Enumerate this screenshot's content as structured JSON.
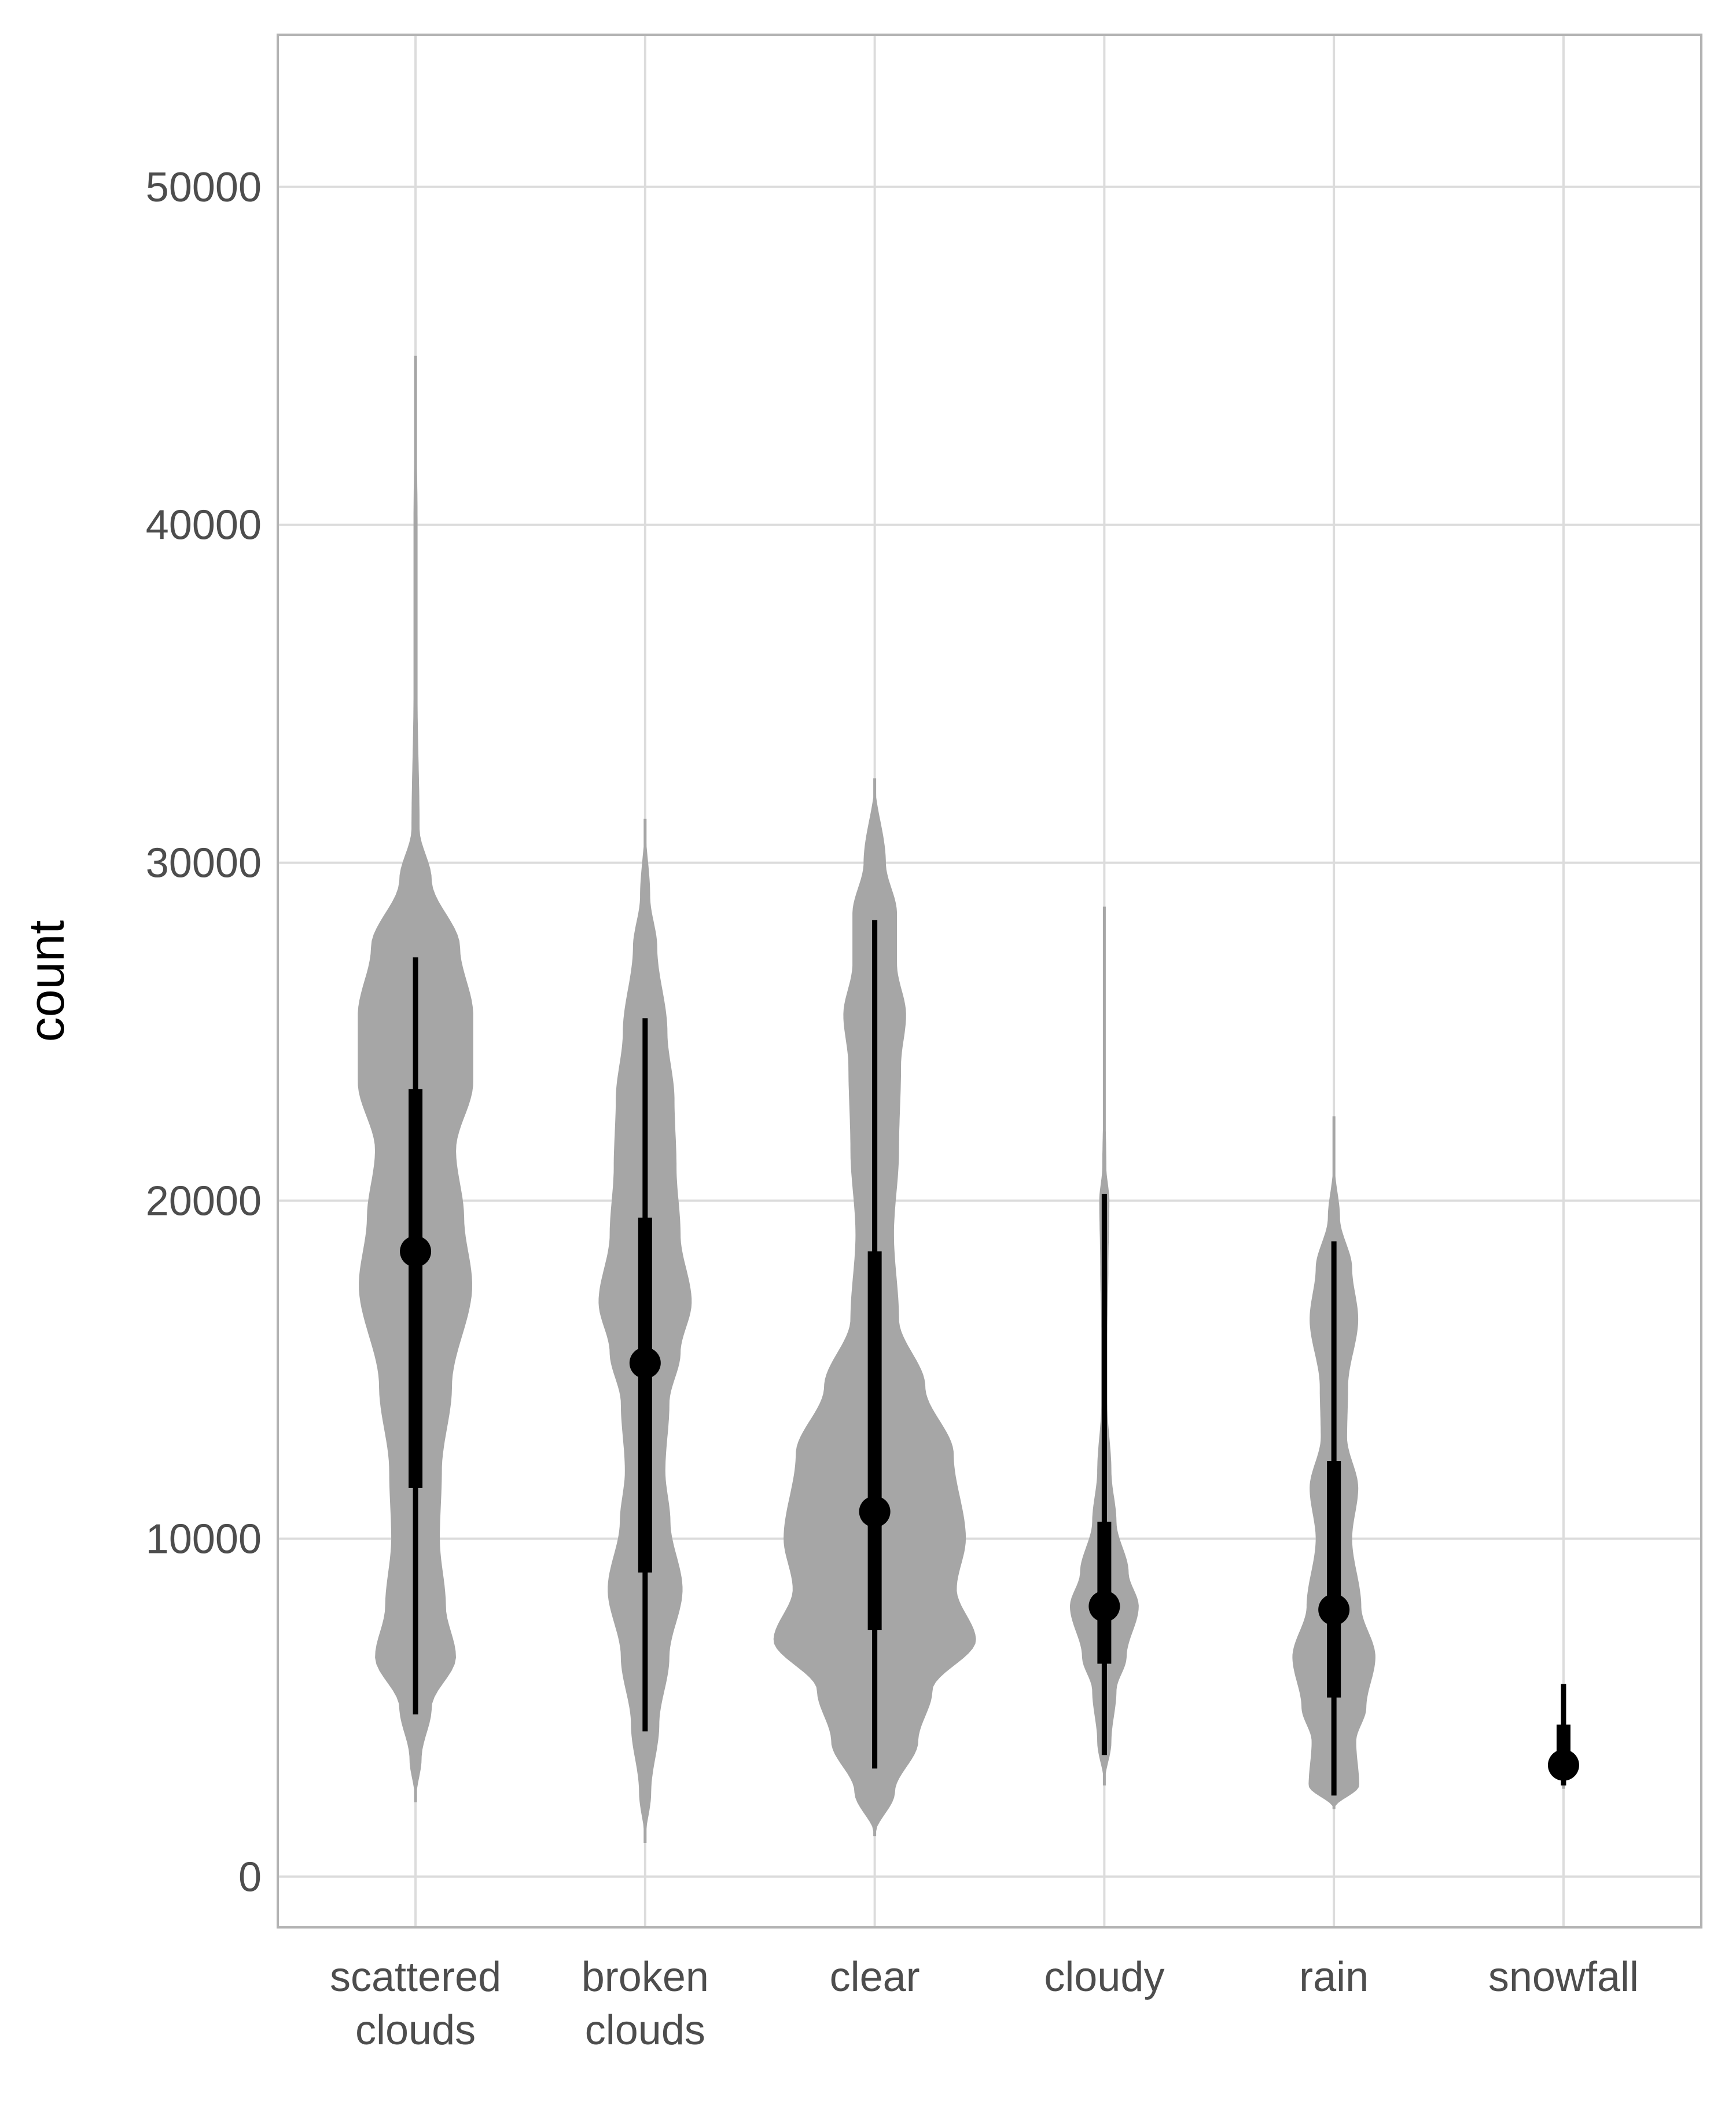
{
  "chart_data": {
    "type": "violin",
    "ylabel": "count",
    "xlabel": "",
    "ylim": [
      -1500,
      54500
    ],
    "yticks": [
      0,
      10000,
      20000,
      30000,
      40000,
      50000
    ],
    "grid": true,
    "colors": {
      "violin": "#a6a6a6",
      "summary": "#000000",
      "grid": "#dcdcdc",
      "frame": "#b3b3b3"
    },
    "categories": [
      {
        "label": [
          "scattered",
          "clouds"
        ],
        "median": 18500,
        "q1": 11500,
        "q3": 23300,
        "whisker_low": 4800,
        "whisker_high": 27200,
        "profile": [
          [
            2200,
            0.0
          ],
          [
            3500,
            0.06
          ],
          [
            5000,
            0.16
          ],
          [
            6500,
            0.4
          ],
          [
            8000,
            0.3
          ],
          [
            10000,
            0.24
          ],
          [
            12000,
            0.26
          ],
          [
            14500,
            0.36
          ],
          [
            17500,
            0.56
          ],
          [
            19500,
            0.48
          ],
          [
            21500,
            0.4
          ],
          [
            23500,
            0.57
          ],
          [
            25500,
            0.57
          ],
          [
            27500,
            0.44
          ],
          [
            29500,
            0.16
          ],
          [
            31000,
            0.04
          ],
          [
            35000,
            0.02
          ],
          [
            40000,
            0.02
          ],
          [
            45000,
            0.0
          ]
        ]
      },
      {
        "label": [
          "broken",
          "clouds"
        ],
        "median": 15200,
        "q1": 9000,
        "q3": 19500,
        "whisker_low": 4300,
        "whisker_high": 25400,
        "profile": [
          [
            1000,
            0.0
          ],
          [
            2500,
            0.06
          ],
          [
            4500,
            0.14
          ],
          [
            6500,
            0.24
          ],
          [
            8500,
            0.37
          ],
          [
            10500,
            0.25
          ],
          [
            12000,
            0.2
          ],
          [
            14000,
            0.24
          ],
          [
            15500,
            0.35
          ],
          [
            17000,
            0.46
          ],
          [
            19000,
            0.35
          ],
          [
            21000,
            0.31
          ],
          [
            23000,
            0.29
          ],
          [
            25000,
            0.22
          ],
          [
            27500,
            0.12
          ],
          [
            29000,
            0.05
          ],
          [
            31300,
            0.0
          ]
        ]
      },
      {
        "label": [
          "clear"
        ],
        "median": 10800,
        "q1": 7300,
        "q3": 18500,
        "whisker_low": 3200,
        "whisker_high": 28300,
        "profile": [
          [
            1200,
            0.0
          ],
          [
            2500,
            0.2
          ],
          [
            4000,
            0.43
          ],
          [
            5500,
            0.57
          ],
          [
            7000,
            1.0
          ],
          [
            8500,
            0.81
          ],
          [
            10000,
            0.9
          ],
          [
            12500,
            0.78
          ],
          [
            14500,
            0.5
          ],
          [
            16500,
            0.24
          ],
          [
            19000,
            0.19
          ],
          [
            21500,
            0.24
          ],
          [
            24000,
            0.26
          ],
          [
            25500,
            0.31
          ],
          [
            27000,
            0.22
          ],
          [
            28500,
            0.22
          ],
          [
            30000,
            0.11
          ],
          [
            32500,
            0.0
          ]
        ]
      },
      {
        "label": [
          "cloudy"
        ],
        "median": 8000,
        "q1": 6300,
        "q3": 10500,
        "whisker_low": 3600,
        "whisker_high": 20200,
        "profile": [
          [
            2700,
            0.0
          ],
          [
            4000,
            0.07
          ],
          [
            5500,
            0.12
          ],
          [
            6500,
            0.22
          ],
          [
            8000,
            0.34
          ],
          [
            9000,
            0.24
          ],
          [
            10500,
            0.12
          ],
          [
            12000,
            0.07
          ],
          [
            14000,
            0.03
          ],
          [
            16000,
            0.03
          ],
          [
            18000,
            0.04
          ],
          [
            20000,
            0.05
          ],
          [
            21000,
            0.02
          ],
          [
            23000,
            0.01
          ],
          [
            28700,
            0.0
          ]
        ]
      },
      {
        "label": [
          "rain"
        ],
        "median": 7900,
        "q1": 5300,
        "q3": 12300,
        "whisker_low": 2400,
        "whisker_high": 18800,
        "profile": [
          [
            2000,
            0.0
          ],
          [
            2700,
            0.25
          ],
          [
            4000,
            0.22
          ],
          [
            5000,
            0.32
          ],
          [
            6500,
            0.41
          ],
          [
            8000,
            0.27
          ],
          [
            10000,
            0.18
          ],
          [
            11500,
            0.24
          ],
          [
            13000,
            0.13
          ],
          [
            14500,
            0.14
          ],
          [
            16500,
            0.24
          ],
          [
            18000,
            0.18
          ],
          [
            19500,
            0.06
          ],
          [
            21000,
            0.01
          ],
          [
            22500,
            0.0
          ]
        ]
      },
      {
        "label": [
          "snowfall"
        ],
        "median": 3300,
        "q1": 2900,
        "q3": 4500,
        "whisker_low": 2700,
        "whisker_high": 5700,
        "profile": [
          [
            2600,
            0.0
          ],
          [
            3000,
            0.02
          ],
          [
            4000,
            0.03
          ],
          [
            5000,
            0.02
          ],
          [
            5700,
            0.0
          ]
        ]
      }
    ]
  }
}
